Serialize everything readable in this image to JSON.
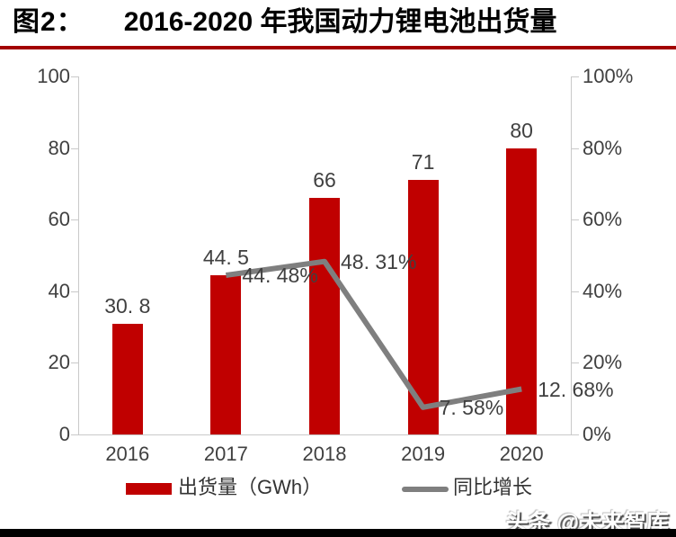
{
  "page": {
    "title_prefix": "图2：",
    "title": "2016-2020 年我国动力锂电池出货量",
    "watermark": "头条 @未来智库"
  },
  "colors": {
    "bar": "#c00000",
    "line": "#7f7f7f",
    "title_rule": "#a30000",
    "axis": "#c9c9c9",
    "label_text": "#404040"
  },
  "chart_data": {
    "type": "bar",
    "overlay_type": "line",
    "title": "2016-2020 年我国动力锂电池出货量",
    "categories": [
      "2016",
      "2017",
      "2018",
      "2019",
      "2020"
    ],
    "series": [
      {
        "name": "出货量（GWh）",
        "kind": "bar",
        "axis": "left",
        "color": "#c00000",
        "values": [
          30.8,
          44.5,
          66,
          71,
          80
        ],
        "labels": [
          "30. 8",
          "44. 5",
          "66",
          "71",
          "80"
        ]
      },
      {
        "name": "同比增长",
        "kind": "line",
        "axis": "right",
        "color": "#7f7f7f",
        "values": [
          null,
          44.48,
          48.31,
          7.58,
          12.68
        ],
        "labels": [
          null,
          "44. 48%",
          "48. 31%",
          "7. 58%",
          "12. 68%"
        ]
      }
    ],
    "left_axis": {
      "min": 0,
      "max": 100,
      "ticks": [
        "100",
        "80",
        "60",
        "40",
        "20",
        "0"
      ]
    },
    "right_axis": {
      "min": 0,
      "max": 100,
      "ticks": [
        "100%",
        "80%",
        "60%",
        "40%",
        "20%",
        "0%"
      ]
    },
    "grid": false,
    "legend_position": "bottom"
  },
  "legend": {
    "items": [
      {
        "label": "出货量（GWh）",
        "color": "#c00000",
        "kind": "bar"
      },
      {
        "label": "同比增长",
        "color": "#7f7f7f",
        "kind": "line"
      }
    ]
  }
}
